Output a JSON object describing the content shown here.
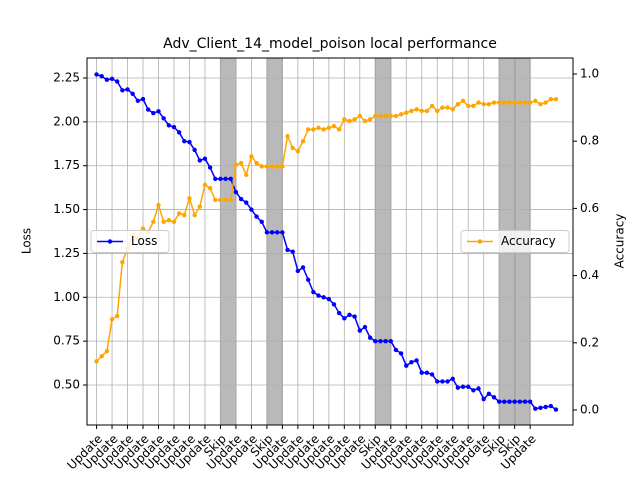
{
  "chart_data": {
    "type": "line",
    "title": "Adv_Client_14_model_poison local performance",
    "y_label": "Loss",
    "y2_label": "Accuracy",
    "xlim": [
      -1.85,
      92.3
    ],
    "xticks": [
      {
        "value": 0,
        "label": "Update"
      },
      {
        "value": 3,
        "label": "Update"
      },
      {
        "value": 6,
        "label": "Update"
      },
      {
        "value": 9,
        "label": "Update"
      },
      {
        "value": 12,
        "label": "Update"
      },
      {
        "value": 15,
        "label": "Update"
      },
      {
        "value": 18,
        "label": "Update"
      },
      {
        "value": 21,
        "label": "Update"
      },
      {
        "value": 24,
        "label": "Skip"
      },
      {
        "value": 27,
        "label": "Update"
      },
      {
        "value": 30,
        "label": "Update"
      },
      {
        "value": 33,
        "label": "Skip"
      },
      {
        "value": 36,
        "label": "Update"
      },
      {
        "value": 39,
        "label": "Update"
      },
      {
        "value": 42,
        "label": "Update"
      },
      {
        "value": 45,
        "label": "Update"
      },
      {
        "value": 48,
        "label": "Update"
      },
      {
        "value": 51,
        "label": "Update"
      },
      {
        "value": 54,
        "label": "Skip"
      },
      {
        "value": 57,
        "label": "Update"
      },
      {
        "value": 60,
        "label": "Update"
      },
      {
        "value": 63,
        "label": "Update"
      },
      {
        "value": 66,
        "label": "Update"
      },
      {
        "value": 69,
        "label": "Update"
      },
      {
        "value": 72,
        "label": "Update"
      },
      {
        "value": 75,
        "label": "Update"
      },
      {
        "value": 78,
        "label": "Skip"
      },
      {
        "value": 81,
        "label": "Skip"
      },
      {
        "value": 84,
        "label": "Update"
      }
    ],
    "skip_spans": [
      [
        24,
        27
      ],
      [
        33,
        36
      ],
      [
        54,
        57
      ],
      [
        78,
        81
      ],
      [
        81,
        84
      ]
    ],
    "skip_color": "#808080",
    "ylim": [
      0.272,
      2.364
    ],
    "yticks": [
      {
        "value": 0.5,
        "label": "0.50"
      },
      {
        "value": 0.75,
        "label": "0.75"
      },
      {
        "value": 1.0,
        "label": "1.00"
      },
      {
        "value": 1.25,
        "label": "1.25"
      },
      {
        "value": 1.5,
        "label": "1.50"
      },
      {
        "value": 1.75,
        "label": "1.75"
      },
      {
        "value": 2.0,
        "label": "2.00"
      },
      {
        "value": 2.25,
        "label": "2.25"
      }
    ],
    "y2lim": [
      -0.0446,
      1.0476
    ],
    "y2ticks": [
      {
        "value": 0.0,
        "label": "0.0"
      },
      {
        "value": 0.2,
        "label": "0.2"
      },
      {
        "value": 0.4,
        "label": "0.4"
      },
      {
        "value": 0.6,
        "label": "0.6"
      },
      {
        "value": 0.8,
        "label": "0.8"
      },
      {
        "value": 1.0,
        "label": "1.0"
      }
    ],
    "grid": true,
    "series": [
      {
        "name": "Loss",
        "color": "#0000ff",
        "legend": "center left",
        "values": [
          2.27,
          2.26,
          2.24,
          2.245,
          2.23,
          2.18,
          2.185,
          2.16,
          2.12,
          2.13,
          2.07,
          2.05,
          2.06,
          2.02,
          1.98,
          1.97,
          1.94,
          1.89,
          1.885,
          1.84,
          1.78,
          1.79,
          1.74,
          1.675,
          1.675,
          1.675,
          1.675,
          1.6,
          1.56,
          1.54,
          1.5,
          1.46,
          1.43,
          1.37,
          1.37,
          1.37,
          1.37,
          1.27,
          1.26,
          1.15,
          1.17,
          1.1,
          1.03,
          1.01,
          1.0,
          0.99,
          0.96,
          0.91,
          0.88,
          0.9,
          0.89,
          0.81,
          0.83,
          0.77,
          0.75,
          0.75,
          0.75,
          0.75,
          0.7,
          0.68,
          0.61,
          0.63,
          0.64,
          0.57,
          0.57,
          0.56,
          0.52,
          0.52,
          0.52,
          0.535,
          0.485,
          0.49,
          0.49,
          0.47,
          0.48,
          0.42,
          0.45,
          0.43,
          0.405,
          0.405,
          0.405,
          0.405,
          0.405,
          0.405,
          0.405,
          0.365,
          0.37,
          0.375,
          0.38,
          0.36
        ]
      },
      {
        "name": "Accuracy",
        "color": "#ffa500",
        "axis": "y2",
        "legend": "center right",
        "values": [
          0.145,
          0.16,
          0.175,
          0.27,
          0.28,
          0.44,
          0.48,
          0.52,
          0.51,
          0.54,
          0.53,
          0.56,
          0.61,
          0.56,
          0.565,
          0.56,
          0.585,
          0.58,
          0.63,
          0.58,
          0.605,
          0.67,
          0.66,
          0.625,
          0.625,
          0.625,
          0.625,
          0.73,
          0.735,
          0.7,
          0.755,
          0.735,
          0.725,
          0.725,
          0.725,
          0.725,
          0.725,
          0.815,
          0.78,
          0.77,
          0.8,
          0.835,
          0.835,
          0.84,
          0.835,
          0.84,
          0.845,
          0.835,
          0.865,
          0.86,
          0.865,
          0.875,
          0.86,
          0.865,
          0.875,
          0.875,
          0.875,
          0.875,
          0.875,
          0.88,
          0.885,
          0.89,
          0.895,
          0.89,
          0.89,
          0.905,
          0.89,
          0.9,
          0.9,
          0.895,
          0.91,
          0.92,
          0.905,
          0.905,
          0.915,
          0.91,
          0.91,
          0.915,
          0.915,
          0.915,
          0.915,
          0.915,
          0.915,
          0.915,
          0.915,
          0.92,
          0.91,
          0.915,
          0.925,
          0.925
        ]
      }
    ]
  }
}
